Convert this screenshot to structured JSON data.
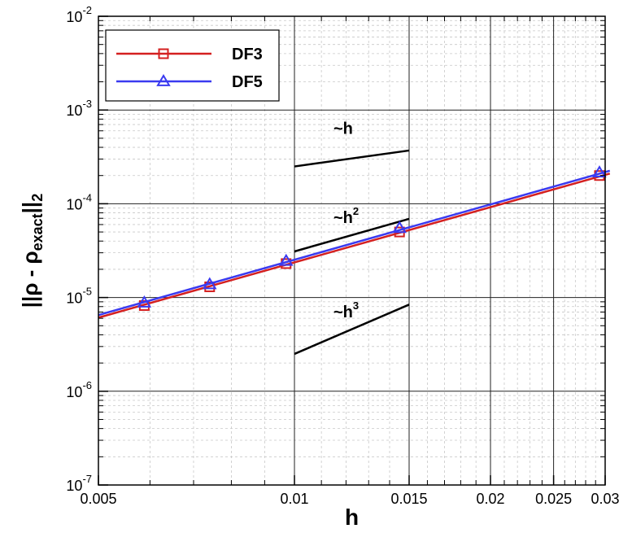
{
  "chart_data": {
    "type": "line",
    "x_scale": "log",
    "y_scale": "log",
    "xlim": [
      0.005,
      0.03
    ],
    "ylim": [
      1e-07,
      0.01
    ],
    "grid": true,
    "legend_position": "top-left",
    "xlabel": "h",
    "ylabel": {
      "prefix": "||ρ - ρ",
      "subscript": "exact",
      "suffix": "||",
      "suffix_subscript": "2"
    },
    "x_tick_values": [
      0.005,
      0.01,
      0.015,
      0.02,
      0.025,
      0.03
    ],
    "x_tick_labels": [
      "0.005",
      "0.01",
      "0.015",
      "0.02",
      "0.025",
      "0.03"
    ],
    "y_tick_values": [
      1e-07,
      1e-06,
      1e-05,
      0.0001,
      0.001,
      0.01
    ],
    "y_tick_labels": [
      {
        "base": "10",
        "exp": "-7"
      },
      {
        "base": "10",
        "exp": "-6"
      },
      {
        "base": "10",
        "exp": "-5"
      },
      {
        "base": "10",
        "exp": "-4"
      },
      {
        "base": "10",
        "exp": "-3"
      },
      {
        "base": "10",
        "exp": "-2"
      }
    ],
    "series": [
      {
        "name": "DF3",
        "color": "#d42020",
        "marker": "square",
        "x": [
          0.00588,
          0.00741,
          0.00971,
          0.0145,
          0.0294
        ],
        "y": [
          8.2e-06,
          1.3e-05,
          2.3e-05,
          5e-05,
          0.0002
        ],
        "line_x": [
          0.005,
          0.0305
        ],
        "line_y": [
          6.1e-06,
          0.00021
        ]
      },
      {
        "name": "DF5",
        "color": "#3a3af0",
        "marker": "triangle",
        "x": [
          0.00588,
          0.00741,
          0.00971,
          0.0145,
          0.0294
        ],
        "y": [
          8.8e-06,
          1.38e-05,
          2.45e-05,
          5.5e-05,
          0.000215
        ],
        "line_x": [
          0.005,
          0.0305
        ],
        "line_y": [
          6.5e-06,
          0.000225
        ]
      }
    ],
    "reference_lines": [
      {
        "label_prefix": "~h",
        "label_exp": "",
        "x": [
          0.01,
          0.015
        ],
        "y": [
          0.00025,
          0.00037
        ]
      },
      {
        "label_prefix": "~h",
        "label_exp": "2",
        "x": [
          0.01,
          0.015
        ],
        "y": [
          3.1e-05,
          6.9e-05
        ]
      },
      {
        "label_prefix": "~h",
        "label_exp": "3",
        "x": [
          0.01,
          0.015
        ],
        "y": [
          2.5e-06,
          8.4e-06
        ]
      }
    ]
  }
}
